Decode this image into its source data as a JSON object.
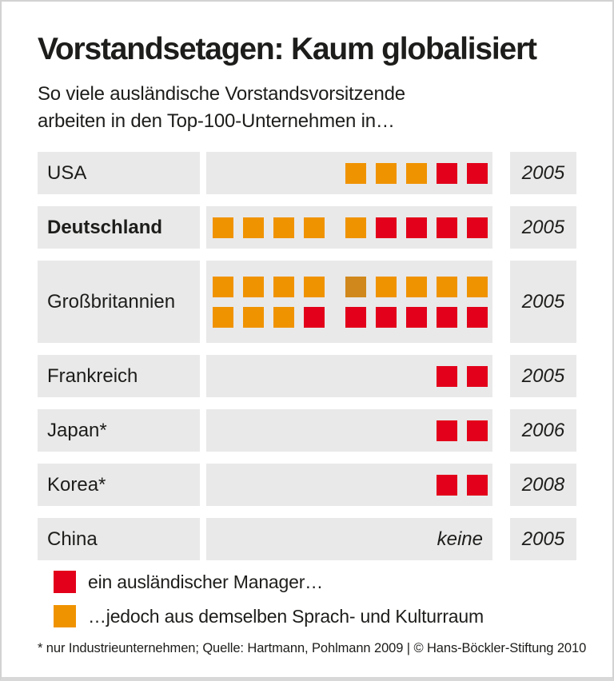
{
  "header": {
    "title": "Vorstandsetagen: Kaum globalisiert",
    "subtitle_line1": "So viele ausländische Vorstandsvorsitzende",
    "subtitle_line2": "arbeiten in den Top-100-Unternehmen in…"
  },
  "colors": {
    "red": "#e2001a",
    "orange": "#f09300",
    "orange_dark": "#d0881c",
    "row_bg": "#e9e9e9"
  },
  "chart_data": {
    "type": "bar",
    "title": "Vorstandsetagen: Kaum globalisiert",
    "subtitle": "So viele ausländische Vorstandsvorsitzende arbeiten in den Top-100-Unternehmen in…",
    "categories": [
      "USA",
      "Deutschland",
      "Großbritannien",
      "Frankreich",
      "Japan*",
      "Korea*",
      "China"
    ],
    "series": [
      {
        "name": "ein ausländischer Manager…",
        "color": "#e2001a",
        "values": [
          2,
          4,
          6,
          2,
          2,
          2,
          0
        ]
      },
      {
        "name": "…jedoch aus demselben Sprach- und Kulturraum",
        "color": "#f09300",
        "values": [
          3,
          5,
          12,
          0,
          0,
          0,
          0
        ]
      }
    ],
    "years": [
      "2005",
      "2005",
      "2005",
      "2005",
      "2006",
      "2008",
      "2005"
    ],
    "annotations": [
      "China: keine"
    ],
    "legend_position": "bottom",
    "grid": false
  },
  "rows": [
    {
      "label": "USA",
      "bold": false,
      "year": "2005",
      "squares": [
        [
          [
            "o",
            "o",
            "o",
            "r",
            "r"
          ]
        ]
      ]
    },
    {
      "label": "Deutschland",
      "bold": true,
      "year": "2005",
      "squares": [
        [
          [
            "o",
            "o",
            "o",
            "o"
          ],
          [
            "o",
            "r",
            "r",
            "r",
            "r"
          ]
        ]
      ]
    },
    {
      "label": "Großbritannien",
      "bold": false,
      "year": "2005",
      "squares": [
        [
          [
            "o",
            "o",
            "o",
            "o"
          ],
          [
            "d",
            "o",
            "o",
            "o",
            "o"
          ]
        ],
        [
          [
            "o",
            "o",
            "o",
            "r"
          ],
          [
            "r",
            "r",
            "r",
            "r",
            "r"
          ]
        ]
      ]
    },
    {
      "label": "Frankreich",
      "bold": false,
      "year": "2005",
      "squares": [
        [
          [
            "r",
            "r"
          ]
        ]
      ]
    },
    {
      "label": "Japan*",
      "bold": false,
      "year": "2006",
      "squares": [
        [
          [
            "r",
            "r"
          ]
        ]
      ]
    },
    {
      "label": "Korea*",
      "bold": false,
      "year": "2008",
      "squares": [
        [
          [
            "r",
            "r"
          ]
        ]
      ]
    },
    {
      "label": "China",
      "bold": false,
      "year": "2005",
      "squares": [],
      "note": "keine"
    }
  ],
  "legend": {
    "items": [
      {
        "color": "red",
        "label": "ein ausländischer Manager…"
      },
      {
        "color": "orange",
        "label": "…jedoch aus demselben Sprach- und Kulturraum"
      }
    ]
  },
  "footer": {
    "text": "* nur Industrieunternehmen; Quelle: Hartmann, Pohlmann 2009 | © Hans-Böckler-Stiftung 2010"
  }
}
